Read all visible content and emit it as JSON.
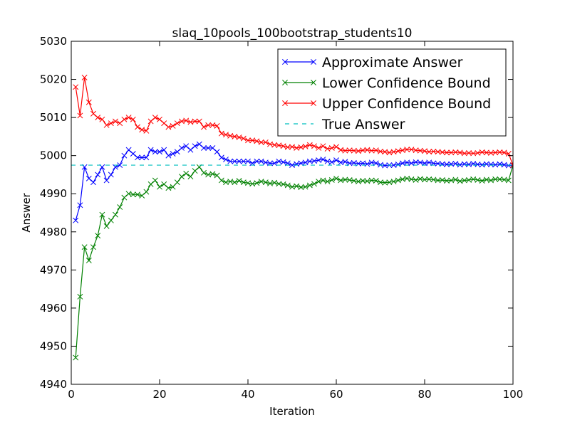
{
  "chart_data": {
    "type": "line",
    "title": "slaq_10pools_100bootstrap_students10",
    "xlabel": "Iteration",
    "ylabel": "Answer",
    "xlim": [
      0,
      100
    ],
    "ylim": [
      4940,
      5030
    ],
    "xticks": [
      0,
      20,
      40,
      60,
      80,
      100
    ],
    "yticks": [
      4940,
      4950,
      4960,
      4970,
      4980,
      4990,
      5000,
      5010,
      5020,
      5030
    ],
    "grid": false,
    "legend_position": "top-right",
    "x": [
      1,
      2,
      3,
      4,
      5,
      6,
      7,
      8,
      9,
      10,
      11,
      12,
      13,
      14,
      15,
      16,
      17,
      18,
      19,
      20,
      21,
      22,
      23,
      24,
      25,
      26,
      27,
      28,
      29,
      30,
      31,
      32,
      33,
      34,
      35,
      36,
      37,
      38,
      39,
      40,
      41,
      42,
      43,
      44,
      45,
      46,
      47,
      48,
      49,
      50,
      51,
      52,
      53,
      54,
      55,
      56,
      57,
      58,
      59,
      60,
      61,
      62,
      63,
      64,
      65,
      66,
      67,
      68,
      69,
      70,
      71,
      72,
      73,
      74,
      75,
      76,
      77,
      78,
      79,
      80,
      81,
      82,
      83,
      84,
      85,
      86,
      87,
      88,
      89,
      90,
      91,
      92,
      93,
      94,
      95,
      96,
      97,
      98,
      99,
      100
    ],
    "series": [
      {
        "name": "Approximate Answer",
        "color": "#0000ff",
        "style": "line-x",
        "values": [
          4983,
          4987,
          4997,
          4994,
          4993,
          4995,
          4997,
          4993.5,
          4995,
          4997,
          4997.5,
          5000,
          5001.5,
          5000.5,
          4999.5,
          4999.5,
          4999.5,
          5001.5,
          5001,
          5001,
          5001.5,
          5000,
          5000.5,
          5001,
          5002,
          5002.5,
          5001.5,
          5002.5,
          5003,
          5002,
          5002,
          5002,
          5001,
          4999.5,
          4999,
          4998.5,
          4998.5,
          4998.5,
          4998.5,
          4998.5,
          4998,
          4998.5,
          4998.5,
          4998.2,
          4998,
          4998,
          4998.5,
          4998.3,
          4998,
          4997.5,
          4997.8,
          4998,
          4998.2,
          4998.5,
          4998.6,
          4998.8,
          4999,
          4998.5,
          4998.3,
          4998.8,
          4998.2,
          4998.4,
          4998,
          4998.1,
          4997.9,
          4998,
          4997.8,
          4998.2,
          4998,
          4997.6,
          4997.4,
          4997.5,
          4997.5,
          4997.7,
          4998,
          4998.2,
          4998,
          4998.3,
          4998.2,
          4998,
          4998.2,
          4998,
          4997.9,
          4997.8,
          4997.7,
          4997.8,
          4997.9,
          4997.6,
          4997.8,
          4997.7,
          4997.9,
          4997.7,
          4997.6,
          4997.8,
          4997.7,
          4997.6,
          4997.8,
          4997.6,
          4997.4,
          4997.4
        ]
      },
      {
        "name": "Lower Confidence Bound",
        "color": "#008000",
        "style": "line-x",
        "values": [
          4947,
          4963,
          4976,
          4972.5,
          4976,
          4979,
          4984.5,
          4981.5,
          4983,
          4984.5,
          4986.5,
          4989,
          4990,
          4989.8,
          4989.8,
          4989.5,
          4990.5,
          4992.5,
          4993.5,
          4991.8,
          4992.5,
          4991.5,
          4991.8,
          4993,
          4994.5,
          4995.3,
          4994.5,
          4996,
          4997,
          4995.5,
          4995,
          4995.2,
          4994.8,
          4993.5,
          4993,
          4993.2,
          4993,
          4993.4,
          4993,
          4992.8,
          4992.6,
          4992.8,
          4993.2,
          4993,
          4992.7,
          4992.9,
          4992.6,
          4992.5,
          4992.2,
          4991.8,
          4992,
          4991.7,
          4991.8,
          4992.2,
          4992.6,
          4993.2,
          4993.5,
          4993.2,
          4993.6,
          4994,
          4993.5,
          4993.7,
          4993.6,
          4993.4,
          4993.2,
          4993.4,
          4993.3,
          4993.5,
          4993.4,
          4993,
          4992.9,
          4993,
          4993.2,
          4993.5,
          4993.8,
          4994,
          4993.8,
          4993.6,
          4993.9,
          4993.7,
          4993.8,
          4993.7,
          4993.5,
          4993.6,
          4993.4,
          4993.5,
          4993.7,
          4993.3,
          4993.5,
          4993.6,
          4993.8,
          4993.6,
          4993.4,
          4993.7,
          4993.5,
          4993.8,
          4993.8,
          4993.7,
          4993.5,
          4997.5
        ]
      },
      {
        "name": "Upper Confidence Bound",
        "color": "#ff0000",
        "style": "line-x",
        "values": [
          5018,
          5010.5,
          5020.5,
          5014,
          5011,
          5010,
          5009.5,
          5008,
          5008.5,
          5009,
          5008.5,
          5009.5,
          5010,
          5009.5,
          5007.5,
          5006.8,
          5006.5,
          5009,
          5010,
          5009.5,
          5008.5,
          5007.5,
          5007.8,
          5008.5,
          5009,
          5009.2,
          5008.8,
          5009,
          5009,
          5007.5,
          5008,
          5008,
          5007.8,
          5005.8,
          5005.5,
          5005.2,
          5005,
          5004.8,
          5004.5,
          5004,
          5004,
          5003.8,
          5003.5,
          5003.5,
          5003,
          5002.8,
          5002.7,
          5002.5,
          5002.2,
          5002.3,
          5002,
          5002.2,
          5002.4,
          5002.8,
          5002.5,
          5002,
          5002.5,
          5001.8,
          5002,
          5002.3,
          5001.5,
          5001.3,
          5001.4,
          5001.3,
          5001.2,
          5001.4,
          5001.5,
          5001.3,
          5001.4,
          5001.1,
          5001,
          5000.8,
          5001,
          5001.2,
          5001.4,
          5001.6,
          5001.6,
          5001.4,
          5001.3,
          5001.2,
          5001,
          5001.1,
          5001,
          5000.9,
          5000.8,
          5000.8,
          5000.9,
          5000.8,
          5000.6,
          5000.7,
          5000.6,
          5000.7,
          5000.9,
          5000.8,
          5000.7,
          5000.8,
          5000.9,
          5000.8,
          5000.5,
          4997.5
        ]
      },
      {
        "name": "True Answer",
        "color": "#00bfbf",
        "style": "dashed",
        "y": 4997.5
      }
    ]
  }
}
